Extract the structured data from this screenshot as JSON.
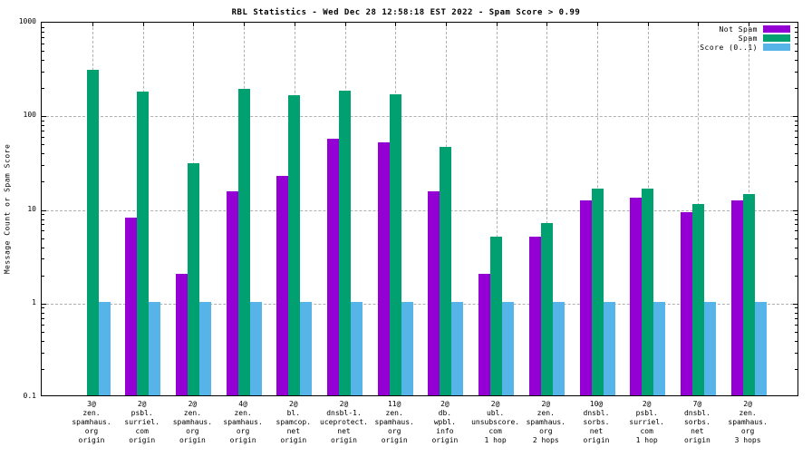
{
  "chart_data": {
    "type": "bar",
    "title": "RBL Statistics - Wed Dec 28 12:58:18 EST 2022 - Spam Score > 0.99",
    "xlabel": "",
    "ylabel": "Message Count or Spam Score",
    "yscale": "log",
    "ylim": [
      0.1,
      1000
    ],
    "ytick_values": [
      1000,
      100,
      10,
      1,
      0.1
    ],
    "ytick_labels": [
      "1000",
      "100",
      "10",
      "1",
      "0.1"
    ],
    "grid": "dashed gray horizontal lines at 1, 10, 100 and vertical line at each category",
    "legend_position": "top-right inside plot",
    "categories_lines": [
      [
        "3@",
        "zen.",
        "spamhaus.",
        "org",
        "origin"
      ],
      [
        "2@",
        "psbl.",
        "surriel.",
        "com",
        "origin"
      ],
      [
        "2@",
        "zen.",
        "spamhaus.",
        "org",
        "origin"
      ],
      [
        "4@",
        "zen.",
        "spamhaus.",
        "org",
        "origin"
      ],
      [
        "2@",
        "bl.",
        "spamcop.",
        "net",
        "origin"
      ],
      [
        "2@",
        "dnsbl-1.",
        "uceprotect.",
        "net",
        "origin"
      ],
      [
        "11@",
        "zen.",
        "spamhaus.",
        "org",
        "origin"
      ],
      [
        "2@",
        "db.",
        "wpbl.",
        "info",
        "origin"
      ],
      [
        "2@",
        "ubl.",
        "unsubscore.",
        "com",
        "1 hop"
      ],
      [
        "2@",
        "zen.",
        "spamhaus.",
        "org",
        "2 hops"
      ],
      [
        "10@",
        "dnsbl.",
        "sorbs.",
        "net",
        "origin"
      ],
      [
        "2@",
        "psbl.",
        "surriel.",
        "com",
        "1 hop"
      ],
      [
        "7@",
        "dnsbl.",
        "sorbs.",
        "net",
        "origin"
      ],
      [
        "2@",
        "zen.",
        "spamhaus.",
        "org",
        "3 hops"
      ]
    ],
    "series": [
      {
        "name": "Not Spam",
        "color": "#9400d3",
        "values": [
          0,
          8,
          2,
          15,
          22,
          55,
          50,
          15,
          2,
          5,
          12,
          13,
          9,
          12
        ]
      },
      {
        "name": "Spam",
        "color": "#00a070",
        "values": [
          300,
          175,
          30,
          190,
          160,
          180,
          165,
          45,
          5,
          7,
          16,
          16,
          11,
          14
        ]
      },
      {
        "name": "Score (0..1)",
        "color": "#56b4e9",
        "values": [
          1,
          1,
          1,
          1,
          1,
          1,
          1,
          1,
          1,
          1,
          1,
          1,
          1,
          1
        ]
      }
    ],
    "colors": {
      "axis": "#000000",
      "grid": "#b0b0b0",
      "background": "#ffffff",
      "text": "#000000"
    }
  }
}
